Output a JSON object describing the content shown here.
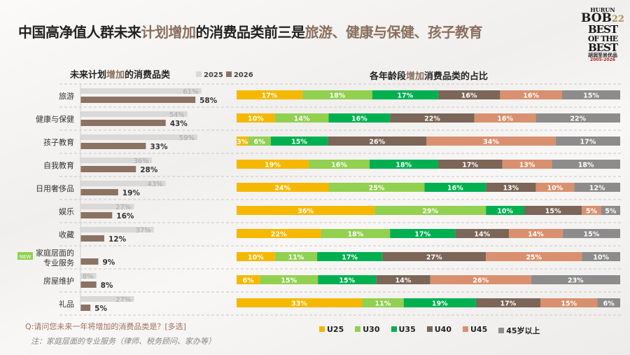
{
  "title": {
    "prefix": "中国高净值人群未来",
    "hl1": "计划增加",
    "mid": "的消费品类前三是",
    "hl2": "旅游、健康与保健、孩子教育"
  },
  "logo": {
    "a": "HURUN",
    "b": "BOB",
    "b2": "22",
    "c1": "BEST",
    "c2": "OF THE",
    "c3": "BEST",
    "d": "胡润至尚优品",
    "e": "2005-2026"
  },
  "chart_data": [
    {
      "type": "bar",
      "orientation": "horizontal",
      "title_parts": [
        "未来计划",
        "增加",
        "的消费品类"
      ],
      "categories": [
        "旅游",
        "健康与保健",
        "孩子教育",
        "自我教育",
        "日用奢侈品",
        "娱乐",
        "收藏",
        "家庭层面的专业服务",
        "房屋维护",
        "礼品"
      ],
      "category_lines": [
        [
          "旅游"
        ],
        [
          "健康与保健"
        ],
        [
          "孩子教育"
        ],
        [
          "自我教育"
        ],
        [
          "日用奢侈品"
        ],
        [
          "娱乐"
        ],
        [
          "收藏"
        ],
        [
          "家庭层面的",
          "专业服务"
        ],
        [
          "房屋维护"
        ],
        [
          "礼品"
        ]
      ],
      "series": [
        {
          "name": "2025",
          "color": "#d9d9d9",
          "values": [
            61,
            54,
            59,
            36,
            43,
            27,
            37,
            null,
            8,
            27
          ]
        },
        {
          "name": "2026",
          "color": "#8b7262",
          "values": [
            58,
            43,
            33,
            28,
            19,
            16,
            12,
            9,
            8,
            5
          ]
        }
      ],
      "unit": "%",
      "badge": {
        "text": "NEW",
        "category_index": 7,
        "color": "#8fd14f"
      }
    },
    {
      "type": "bar",
      "stacked": true,
      "orientation": "horizontal",
      "title_parts": [
        "各年龄段",
        "增加",
        "消费品类的占比"
      ],
      "series": [
        {
          "name": "U25",
          "color": "#f5b800",
          "values": [
            17,
            10,
            3,
            19,
            24,
            36,
            22,
            10,
            6,
            33
          ]
        },
        {
          "name": "U30",
          "color": "#92d050",
          "values": [
            18,
            14,
            6,
            16,
            25,
            29,
            18,
            11,
            15,
            11
          ]
        },
        {
          "name": "U35",
          "color": "#00b050",
          "values": [
            17,
            16,
            15,
            18,
            16,
            10,
            17,
            17,
            15,
            19
          ]
        },
        {
          "name": "U40",
          "color": "#7b6658",
          "values": [
            16,
            22,
            26,
            17,
            13,
            15,
            14,
            27,
            14,
            17
          ]
        },
        {
          "name": "U45",
          "color": "#d9906f",
          "values": [
            16,
            16,
            34,
            13,
            10,
            5,
            14,
            25,
            26,
            15
          ]
        },
        {
          "name": "45岁以上",
          "color": "#8c8c8c",
          "values": [
            15,
            22,
            17,
            18,
            12,
            5,
            15,
            10,
            23,
            6
          ]
        }
      ],
      "unit": "%"
    }
  ],
  "footer": {
    "question": "Q:请问您未来一年将增加的消费品类是？[多选]",
    "note": "注：家庭层面的专业服务（律师、税务顾问、家办等）"
  }
}
